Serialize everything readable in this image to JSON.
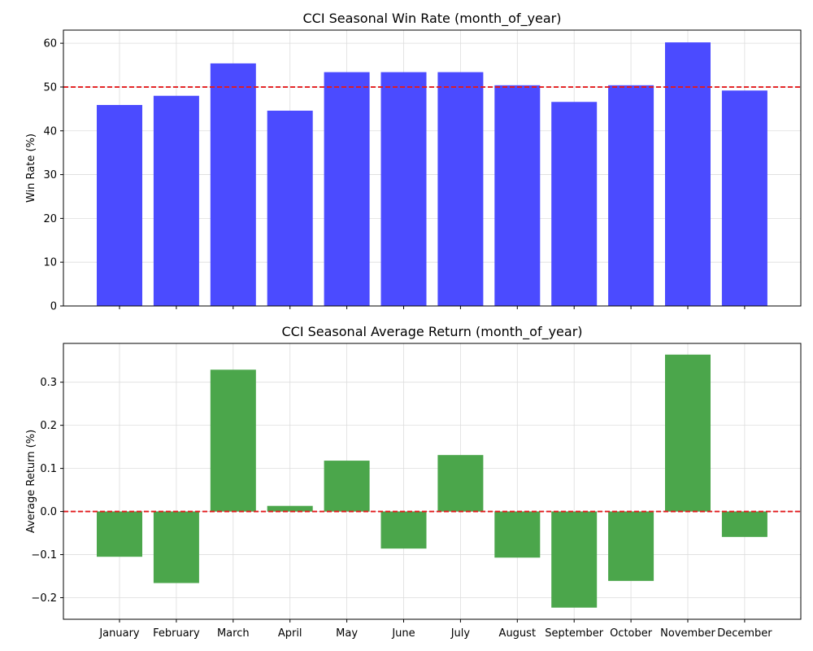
{
  "chart_data": [
    {
      "type": "bar",
      "title": "CCI Seasonal Win Rate (month_of_year)",
      "xlabel": "",
      "ylabel": "Win Rate (%)",
      "categories": [
        "January",
        "February",
        "March",
        "April",
        "May",
        "June",
        "July",
        "August",
        "September",
        "October",
        "November",
        "December"
      ],
      "values": [
        45.9,
        48.0,
        55.4,
        44.6,
        53.4,
        53.4,
        53.4,
        50.4,
        46.6,
        50.4,
        60.2,
        49.2
      ],
      "ylim": [
        0,
        63
      ],
      "yticks": [
        0,
        10,
        20,
        30,
        40,
        50,
        60
      ],
      "reference_line": 50,
      "bar_color": "#4b4bff",
      "ref_color": "#e31a1c",
      "grid": true,
      "show_x_tick_labels": false
    },
    {
      "type": "bar",
      "title": "CCI Seasonal Average Return (month_of_year)",
      "xlabel": "",
      "ylabel": "Average Return (%)",
      "categories": [
        "January",
        "February",
        "March",
        "April",
        "May",
        "June",
        "July",
        "August",
        "September",
        "October",
        "November",
        "December"
      ],
      "values": [
        -0.105,
        -0.166,
        0.329,
        0.013,
        0.118,
        -0.086,
        0.131,
        -0.107,
        -0.223,
        -0.161,
        0.364,
        -0.059
      ],
      "ylim": [
        -0.25,
        0.39
      ],
      "yticks": [
        -0.2,
        -0.1,
        0.0,
        0.1,
        0.2,
        0.3
      ],
      "ytick_labels": [
        "−0.2",
        "−0.1",
        "0.0",
        "0.1",
        "0.2",
        "0.3"
      ],
      "reference_line": 0,
      "bar_color": "#4ba64b",
      "ref_color": "#e31a1c",
      "grid": true,
      "show_x_tick_labels": true
    }
  ]
}
